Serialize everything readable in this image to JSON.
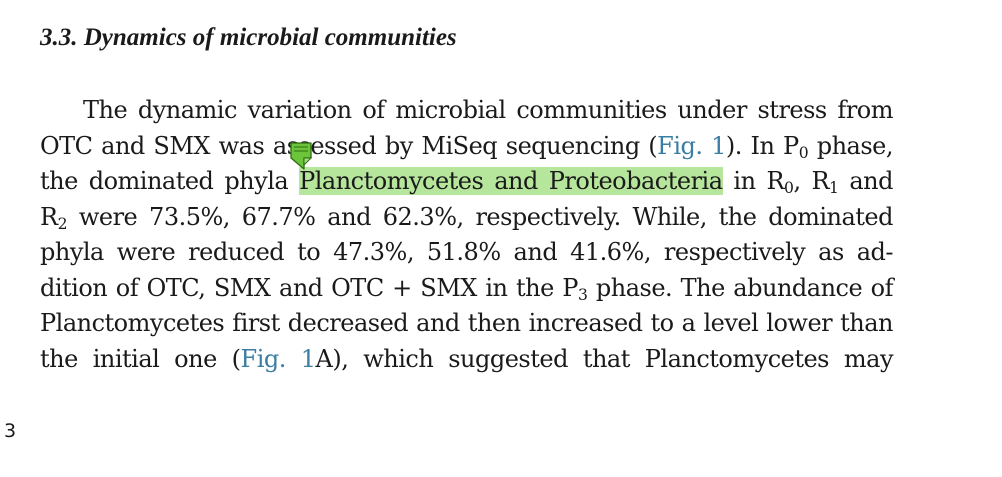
{
  "section": {
    "heading": "3.3. Dynamics of microbial communities"
  },
  "paragraph": {
    "l1": "The dynamic variation of microbial communities under stress from",
    "l2a": "OTC and SMX was assessed by MiSeq sequencing (",
    "l2ref": "Fig. 1",
    "l2b": "). In P",
    "l2sub": "0",
    "l2c": " phase,",
    "l3a": "the dominated phyla ",
    "l3hl": "Planctomycetes and Proteobacteria",
    "l3b": " in R",
    "l3sub1": "0",
    "l3c": ", R",
    "l3sub2": "1",
    "l3d": " and",
    "l4a": "R",
    "l4sub": "2",
    "l4b": " were 73.5%, 67.7% and 62.3%, respectively. While, the dominated",
    "l5": "phyla were reduced to 47.3%, 51.8% and 41.6%, respectively as ad-",
    "l6a": "dition of OTC, SMX and OTC + SMX in the P",
    "l6sub": "3",
    "l6b": " phase. The abundance of",
    "l7": "Planctomycetes first decreased and then increased to a level lower than",
    "l8a": "the initial one (",
    "l8ref": "Fig. 1",
    "l8b": "A), which suggested that Planctomycetes may"
  },
  "page": {
    "number": "3"
  },
  "annotation": {
    "icon": "note-icon",
    "color": "#6cc43a"
  },
  "colors": {
    "highlight": "#b6e59c",
    "link": "#3a7ea3"
  }
}
